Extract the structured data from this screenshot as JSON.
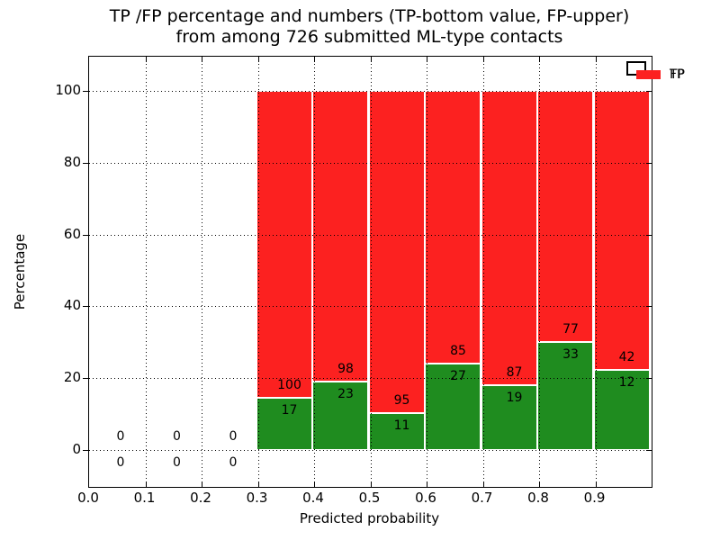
{
  "chart_data": {
    "type": "bar",
    "stacked": true,
    "title_line1": "TP /FP percentage and numbers (TP-bottom value, FP-upper)",
    "title_line2": "from among 726 submitted ML-type contacts",
    "xlabel": "Predicted probability",
    "ylabel": "Percentage",
    "total_contacts": 726,
    "xlim": [
      0.0,
      1.0
    ],
    "ylim": [
      -10.5,
      109.5
    ],
    "xticks": [
      "0.0",
      "0.1",
      "0.2",
      "0.3",
      "0.4",
      "0.5",
      "0.6",
      "0.7",
      "0.8",
      "0.9"
    ],
    "xtick_values": [
      0.0,
      0.1,
      0.2,
      0.3,
      0.4,
      0.5,
      0.6,
      0.7,
      0.8,
      0.9
    ],
    "yticks": [
      "0",
      "20",
      "40",
      "60",
      "80",
      "100"
    ],
    "ytick_values": [
      0,
      20,
      40,
      60,
      80,
      100
    ],
    "grid": "dotted",
    "legend": {
      "position": "upper-right",
      "entries": [
        {
          "label": "TP",
          "color": "#1f8c1f"
        },
        {
          "label": "FP",
          "color": "#fc2120"
        }
      ]
    },
    "bins": [
      {
        "x0": 0.0,
        "x1": 0.1,
        "tp": 0,
        "fp": 0
      },
      {
        "x0": 0.1,
        "x1": 0.2,
        "tp": 0,
        "fp": 0
      },
      {
        "x0": 0.2,
        "x1": 0.3,
        "tp": 0,
        "fp": 0
      },
      {
        "x0": 0.3,
        "x1": 0.4,
        "tp": 17,
        "fp": 100
      },
      {
        "x0": 0.4,
        "x1": 0.5,
        "tp": 23,
        "fp": 98
      },
      {
        "x0": 0.5,
        "x1": 0.6,
        "tp": 11,
        "fp": 95
      },
      {
        "x0": 0.6,
        "x1": 0.7,
        "tp": 27,
        "fp": 85
      },
      {
        "x0": 0.7,
        "x1": 0.8,
        "tp": 19,
        "fp": 87
      },
      {
        "x0": 0.8,
        "x1": 0.9,
        "tp": 33,
        "fp": 77
      },
      {
        "x0": 0.9,
        "x1": 1.0,
        "tp": 12,
        "fp": 42
      }
    ]
  }
}
